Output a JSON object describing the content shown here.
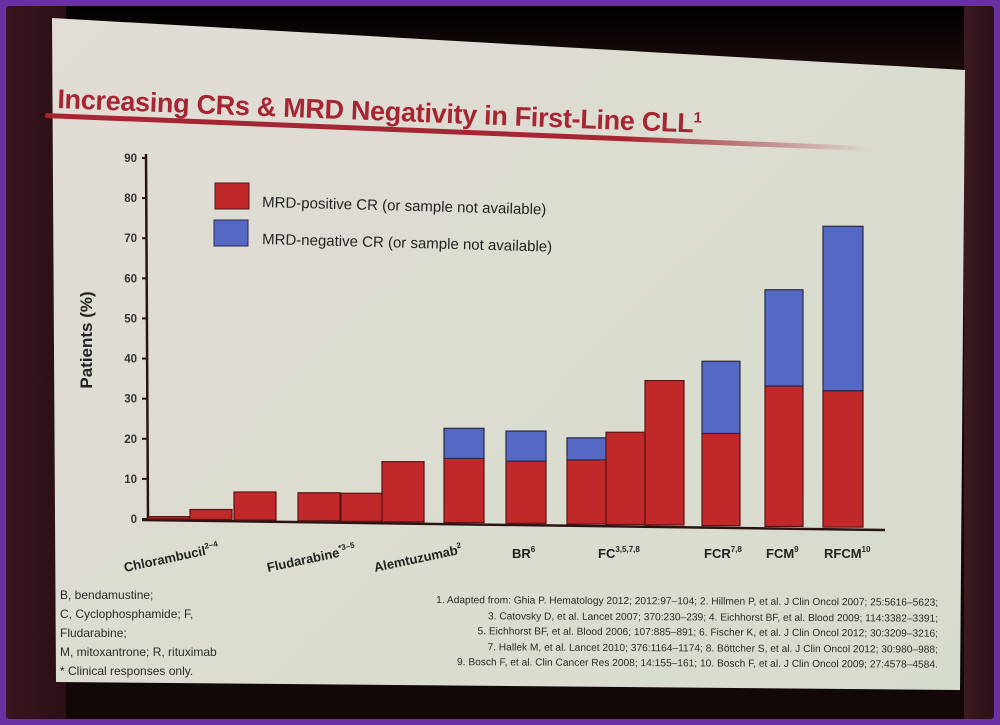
{
  "slide": {
    "title": "Increasing CRs & MRD Negativity in First-Line CLL",
    "title_superscript": "1",
    "abbreviations": [
      "B, bendamustine;",
      "C, Cyclophosphamide; F,",
      "Fludarabine;",
      "M, mitoxantrone; R, rituximab",
      "* Clinical responses only."
    ],
    "references": [
      "1. Adapted from: Ghia P. Hematology 2012; 2012:97–104; 2. Hillmen P, et al. J Clin Oncol 2007; 25:5616–5623;",
      "3. Catovsky D, et al. Lancet 2007; 370:230–239; 4. Eichhorst BF, et al. Blood 2009; 114:3382–3391;",
      "5. Eichhorst BF, et al. Blood 2006; 107:885–891; 6. Fischer K, et al. J Clin Oncol 2012; 30:3209–3216;",
      "7. Hallek M, et al. Lancet 2010; 376:1164–1174; 8. Böttcher S, et al. J Clin Oncol 2012; 30:980–988;",
      "9. Bosch F, et al. Clin Cancer Res 2008; 14:155–161; 10. Bosch F, et al. J Clin Oncol 2009; 27:4578–4584."
    ]
  },
  "colors": {
    "mrd_positive": "#c0282a",
    "mrd_negative": "#5568c4",
    "title": "#a52632",
    "axis": "#2a1414"
  },
  "chart_data": {
    "type": "bar",
    "stacked": true,
    "title": "Increasing CRs & MRD Negativity in First-Line CLL",
    "xlabel": "",
    "ylabel": "Patients (%)",
    "ylim": [
      0,
      90
    ],
    "yticks": [
      0,
      10,
      20,
      30,
      40,
      50,
      60,
      70,
      80,
      90
    ],
    "grid": false,
    "legend_position": "top-left",
    "legend": [
      "MRD-positive CR (or sample not available)",
      "MRD-negative CR (or sample not available)"
    ],
    "groups": [
      {
        "label": "Chlorambucil",
        "sup": "2–4",
        "bars": [
          {
            "pos": 0.6,
            "neg": 0
          },
          {
            "pos": 2.5,
            "neg": 0
          },
          {
            "pos": 7,
            "neg": 0
          }
        ]
      },
      {
        "label": "Fludarabine",
        "sup": "*3–5",
        "bars": [
          {
            "pos": 7,
            "neg": 0
          },
          {
            "pos": 7,
            "neg": 0
          },
          {
            "pos": 15,
            "neg": 0
          }
        ]
      },
      {
        "label": "Alemtuzumab",
        "sup": "2",
        "bars": [
          {
            "pos": 16,
            "neg": 7.5
          }
        ]
      },
      {
        "label": "BR",
        "sup": "6",
        "bars": [
          {
            "pos": 15.5,
            "neg": 7.5
          }
        ]
      },
      {
        "label": "FC",
        "sup": "3,5,7,8",
        "bars": [
          {
            "pos": 16,
            "neg": 5.5
          },
          {
            "pos": 23,
            "neg": 0
          },
          {
            "pos": 36,
            "neg": 0
          }
        ]
      },
      {
        "label": "FCR",
        "sup": "7,8",
        "bars": [
          {
            "pos": 23,
            "neg": 18
          }
        ]
      },
      {
        "label": "FCM",
        "sup": "9",
        "bars": [
          {
            "pos": 35,
            "neg": 24
          }
        ]
      },
      {
        "label": "RFCM",
        "sup": "10",
        "bars": [
          {
            "pos": 34,
            "neg": 41
          }
        ]
      }
    ]
  }
}
